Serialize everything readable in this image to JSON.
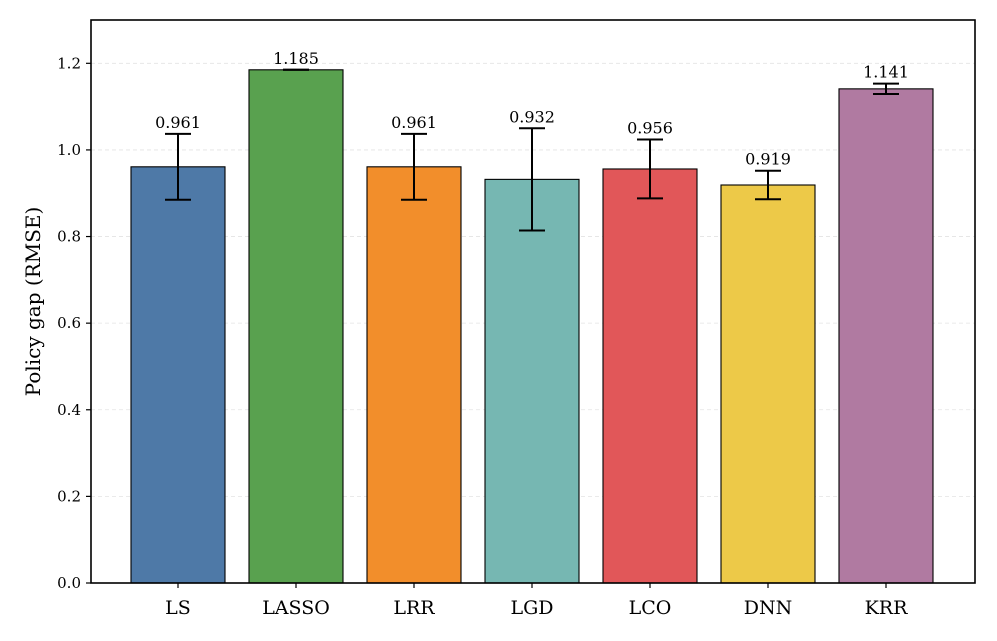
{
  "chart_data": {
    "type": "bar",
    "title": "",
    "xlabel": "",
    "ylabel": "Policy gap (RMSE)",
    "ylim": [
      0,
      1.3
    ],
    "yticks": [
      0.0,
      0.2,
      0.4,
      0.6,
      0.8,
      1.0,
      1.2
    ],
    "ytick_labels": [
      "0.0",
      "0.2",
      "0.4",
      "0.6",
      "0.8",
      "1.0",
      "1.2"
    ],
    "grid": true,
    "categories": [
      "LS",
      "LASSO",
      "LRR",
      "LGD",
      "LCO",
      "DNN",
      "KRR"
    ],
    "values": [
      0.961,
      1.185,
      0.961,
      0.932,
      0.956,
      0.919,
      1.141
    ],
    "errors": [
      0.076,
      0.0,
      0.076,
      0.118,
      0.068,
      0.033,
      0.012
    ],
    "value_labels": [
      "0.961",
      "1.185",
      "0.961",
      "0.932",
      "0.956",
      "0.919",
      "1.141"
    ],
    "colors": [
      "#4e79a7",
      "#59a14f",
      "#f28e2b",
      "#76b7b2",
      "#e15759",
      "#edc948",
      "#b07aa1"
    ]
  }
}
